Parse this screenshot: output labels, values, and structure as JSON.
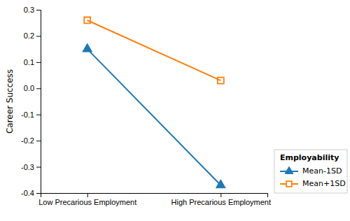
{
  "chart_data": {
    "type": "line",
    "y_label": "Career Success",
    "categories": [
      "Low Precarious Employment",
      "High Precarious Employment"
    ],
    "series": [
      {
        "name": "Mean-1SD",
        "values": [
          0.15,
          -0.37
        ],
        "marker": "triangle"
      },
      {
        "name": "Mean+1SD",
        "values": [
          0.26,
          0.03
        ],
        "marker": "square-open"
      }
    ],
    "ylim": [
      -0.4,
      0.3
    ],
    "yticks": [
      -0.4,
      -0.3,
      -0.2,
      -0.1,
      {
        "value": 0,
        "label": "0.0"
      },
      0.1,
      0.2,
      0.3
    ],
    "grid": false,
    "legend": "lower right",
    "legend_title": "Employability"
  }
}
